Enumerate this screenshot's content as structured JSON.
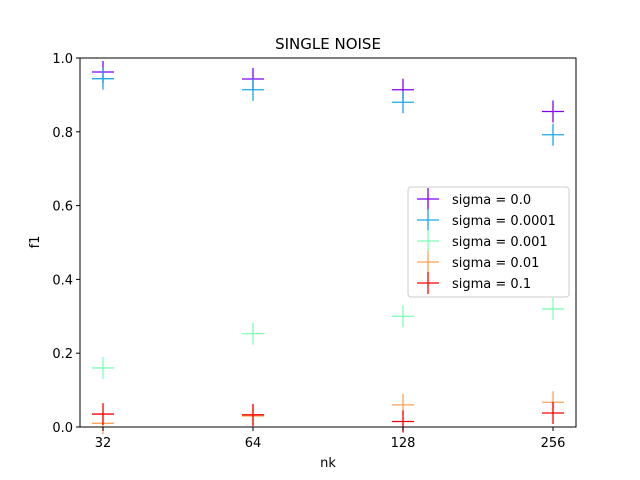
{
  "chart_data": {
    "type": "scatter",
    "title": "SINGLE NOISE",
    "xlabel": "nk",
    "ylabel": "f1",
    "categories": [
      "32",
      "64",
      "128",
      "256"
    ],
    "ylim": [
      0.0,
      1.0
    ],
    "yticks": [
      "0.0",
      "0.2",
      "0.4",
      "0.6",
      "0.8",
      "1.0"
    ],
    "grid": false,
    "legend_position": "center-right",
    "marker": "plus",
    "series": [
      {
        "name": "sigma = 0.0",
        "color": "#8000ff",
        "values": [
          0.962,
          0.943,
          0.914,
          0.855
        ]
      },
      {
        "name": "sigma = 0.0001",
        "color": "#1aa8e6",
        "values": [
          0.944,
          0.914,
          0.88,
          0.792
        ]
      },
      {
        "name": "sigma = 0.001",
        "color": "#80ffb4",
        "values": [
          0.16,
          0.253,
          0.3,
          0.32
        ]
      },
      {
        "name": "sigma = 0.01",
        "color": "#ffa256",
        "values": [
          0.01,
          0.03,
          0.06,
          0.067
        ]
      },
      {
        "name": "sigma = 0.1",
        "color": "#ff0000",
        "values": [
          0.035,
          0.033,
          0.015,
          0.038
        ]
      }
    ]
  }
}
